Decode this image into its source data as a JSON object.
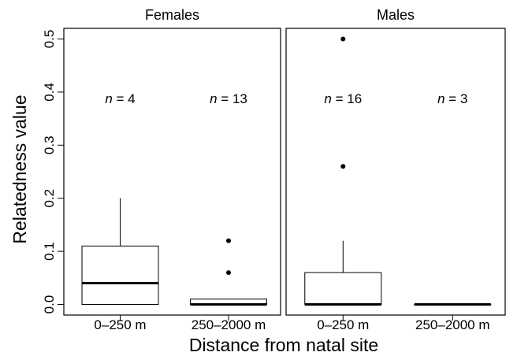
{
  "chart_data": {
    "type": "boxplot",
    "xlabel": "Distance from natal site",
    "ylabel": "Relatedness value",
    "ylim": [
      -0.02,
      0.52
    ],
    "yticks": [
      0.0,
      0.1,
      0.2,
      0.3,
      0.4,
      0.5
    ],
    "ytick_labels": [
      "0.0",
      "0.1",
      "0.2",
      "0.3",
      "0.4",
      "0.5"
    ],
    "categories": [
      "0–250 m",
      "250–2000 m"
    ],
    "grid": false,
    "panels": [
      {
        "title": "Females",
        "boxes": [
          {
            "category": "0–250 m",
            "n_label": "n = 4",
            "q1": 0.0,
            "median": 0.04,
            "q3": 0.11,
            "whisker_low": 0.0,
            "whisker_high": 0.2,
            "outliers": []
          },
          {
            "category": "250–2000 m",
            "n_label": "n = 13",
            "q1": 0.0,
            "median": 0.0,
            "q3": 0.01,
            "whisker_low": 0.0,
            "whisker_high": 0.01,
            "outliers": [
              0.06,
              0.12
            ]
          }
        ]
      },
      {
        "title": "Males",
        "boxes": [
          {
            "category": "0–250 m",
            "n_label": "n = 16",
            "q1": 0.0,
            "median": 0.0,
            "q3": 0.06,
            "whisker_low": 0.0,
            "whisker_high": 0.12,
            "outliers": [
              0.26,
              0.5
            ]
          },
          {
            "category": "250–2000 m",
            "n_label": "n = 3",
            "q1": 0.0,
            "median": 0.0,
            "q3": 0.0,
            "whisker_low": 0.0,
            "whisker_high": 0.0,
            "outliers": []
          }
        ]
      }
    ]
  }
}
